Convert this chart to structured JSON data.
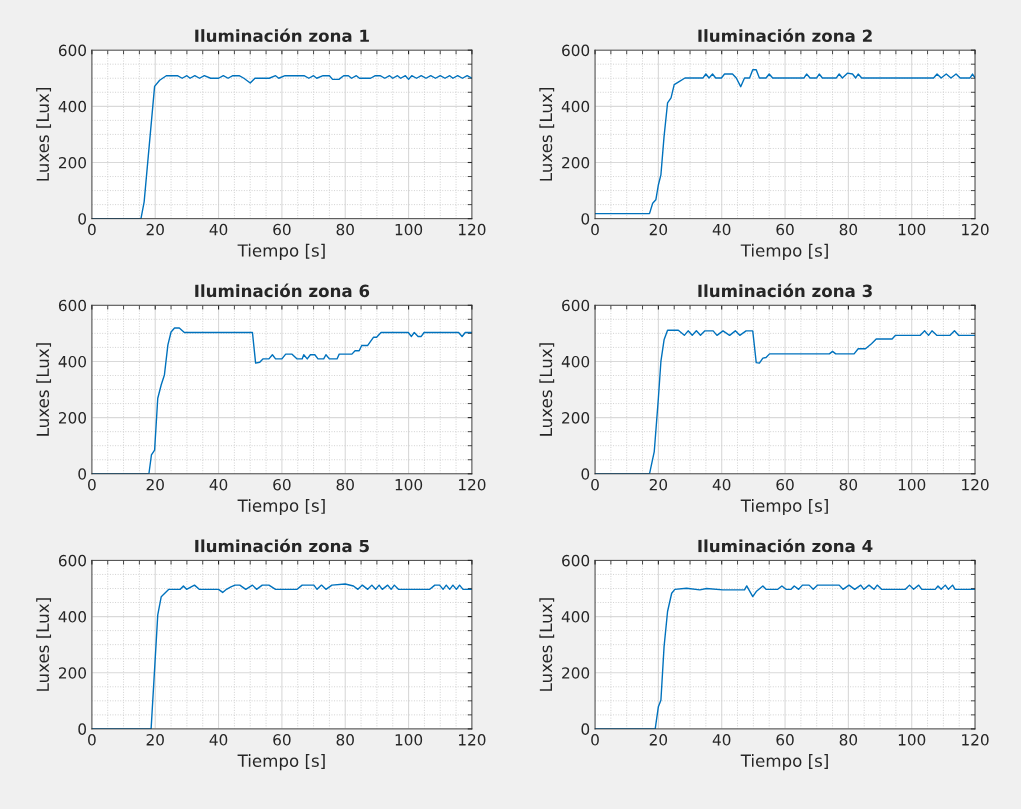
{
  "chart_data": [
    {
      "type": "line",
      "title": "Iluminación zona 1",
      "xlabel": "Tiempo [s]",
      "ylabel": "Luxes [Lux]",
      "xlim": [
        0,
        120
      ],
      "xticks": [
        0,
        20,
        40,
        60,
        80,
        100,
        120
      ],
      "ylim": [
        0,
        600
      ],
      "yticks": [
        0,
        200,
        400,
        600
      ],
      "grid": true,
      "marker": "none",
      "line_style": "solid",
      "series": [
        {
          "color": "#0072bd",
          "x": [
            0,
            15.5,
            16.5,
            19.8,
            21.4,
            23.5,
            27,
            28.5,
            30,
            31,
            32.5,
            34,
            35.5,
            37.5,
            40,
            41.5,
            43,
            44.5,
            46.5,
            48,
            50,
            51.5,
            56,
            58,
            59,
            61,
            67,
            68.5,
            70,
            71,
            73,
            75,
            76,
            78,
            79.5,
            81,
            82,
            83.5,
            84.5,
            88,
            89.5,
            91,
            92.5,
            94,
            95,
            96.5,
            97.5,
            99,
            100,
            101,
            102.5,
            104,
            105.5,
            107,
            108.5,
            110,
            111.5,
            113,
            114,
            115.5,
            117,
            118.5,
            120
          ],
          "values": [
            0,
            0,
            60,
            471,
            493,
            509,
            509,
            500,
            509,
            500,
            509,
            500,
            509,
            500,
            500,
            509,
            500,
            509,
            509,
            500,
            483,
            500,
            500,
            509,
            500,
            509,
            509,
            500,
            509,
            500,
            509,
            509,
            496,
            496,
            509,
            509,
            500,
            509,
            500,
            500,
            509,
            509,
            500,
            509,
            500,
            509,
            500,
            509,
            496,
            509,
            500,
            509,
            500,
            509,
            500,
            509,
            500,
            509,
            500,
            509,
            500,
            509,
            500
          ]
        }
      ]
    },
    {
      "type": "line",
      "title": "Iluminación zona 2",
      "xlabel": "Tiempo [s]",
      "ylabel": "Luxes [Lux]",
      "xlim": [
        0,
        120
      ],
      "xticks": [
        0,
        20,
        40,
        60,
        80,
        100,
        120
      ],
      "ylim": [
        0,
        600
      ],
      "yticks": [
        0,
        200,
        400,
        600
      ],
      "grid": true,
      "marker": "none",
      "line_style": "solid",
      "series": [
        {
          "color": "#0072bd",
          "x": [
            0,
            17.2,
            18.2,
            19.2,
            20,
            20.8,
            21.8,
            22.9,
            24,
            25,
            26.3,
            28.4,
            34.1,
            35,
            36,
            37.1,
            38.1,
            39.9,
            40.9,
            43.4,
            44.6,
            46,
            47.2,
            48.8,
            49.8,
            50.9,
            51.9,
            54,
            55,
            56.1,
            66,
            66.8,
            67.9,
            70,
            70.8,
            71.8,
            76.2,
            77.1,
            78.1,
            79.7,
            81.3,
            82.3,
            83.1,
            84.2,
            106.9,
            108,
            109.3,
            110.9,
            112.4,
            114,
            115.3,
            118.4,
            119.2,
            120
          ],
          "values": [
            18,
            18,
            55,
            67,
            120,
            156,
            293,
            412,
            430,
            477,
            486,
            501,
            501,
            515,
            501,
            515,
            501,
            501,
            515,
            515,
            501,
            470,
            501,
            501,
            530,
            530,
            501,
            501,
            515,
            501,
            501,
            515,
            501,
            501,
            515,
            501,
            501,
            515,
            501,
            518,
            515,
            501,
            515,
            501,
            501,
            515,
            501,
            515,
            501,
            515,
            501,
            501,
            515,
            501
          ]
        }
      ]
    },
    {
      "type": "line",
      "title": "Iluminación zona 6",
      "xlabel": "Tiempo [s]",
      "ylabel": "Luxes [Lux]",
      "xlim": [
        0,
        120
      ],
      "xticks": [
        0,
        20,
        40,
        60,
        80,
        100,
        120
      ],
      "ylim": [
        0,
        600
      ],
      "yticks": [
        0,
        200,
        400,
        600
      ],
      "grid": true,
      "marker": "none",
      "line_style": "solid",
      "series": [
        {
          "color": "#0072bd",
          "x": [
            0,
            18,
            18.8,
            19.8,
            20.8,
            21.9,
            22.9,
            24,
            25,
            26.1,
            27.6,
            29.2,
            50.7,
            51.7,
            53,
            54,
            55.9,
            57,
            58,
            60,
            61.2,
            63.2,
            64.8,
            66.4,
            66.9,
            68,
            69,
            70.4,
            71.4,
            73.2,
            73.9,
            75,
            77.4,
            78.1,
            82.1,
            83.1,
            84.4,
            85.2,
            87.1,
            88.9,
            89.9,
            91.3,
            99.9,
            100.9,
            101.8,
            103,
            104,
            104.9,
            115.8,
            116.9,
            117.9,
            120
          ],
          "values": [
            0,
            0,
            67,
            84,
            269,
            317,
            352,
            459,
            505,
            519,
            519,
            503,
            503,
            394,
            397,
            409,
            409,
            424,
            409,
            409,
            426,
            426,
            409,
            409,
            424,
            409,
            424,
            424,
            409,
            409,
            424,
            409,
            409,
            426,
            426,
            438,
            438,
            457,
            457,
            486,
            486,
            503,
            503,
            489,
            503,
            489,
            489,
            503,
            503,
            489,
            503,
            503
          ]
        }
      ]
    },
    {
      "type": "line",
      "title": "Iluminación zona 3",
      "xlabel": "Tiempo [s]",
      "ylabel": "Luxes [Lux]",
      "xlim": [
        0,
        120
      ],
      "xticks": [
        0,
        20,
        40,
        60,
        80,
        100,
        120
      ],
      "ylim": [
        0,
        600
      ],
      "yticks": [
        0,
        200,
        400,
        600
      ],
      "grid": true,
      "marker": "none",
      "line_style": "solid",
      "series": [
        {
          "color": "#0072bd",
          "x": [
            0,
            17.2,
            18.7,
            20,
            20.8,
            21.8,
            22.9,
            26.3,
            28.2,
            29.4,
            30.7,
            32,
            33.3,
            34.7,
            37.3,
            38.5,
            40.4,
            42.5,
            44.3,
            45.7,
            47.7,
            49.8,
            50.9,
            51.9,
            53,
            54,
            55.1,
            74,
            75,
            76,
            81.8,
            83.1,
            85.4,
            87.3,
            88.8,
            93.8,
            94.9,
            102.7,
            104.1,
            105.3,
            106.4,
            107.9,
            112.1,
            113.5,
            114.8,
            120
          ],
          "values": [
            0,
            0,
            79,
            269,
            400,
            477,
            511,
            511,
            493,
            509,
            493,
            509,
            493,
            509,
            509,
            493,
            509,
            493,
            509,
            493,
            509,
            509,
            396,
            394,
            412,
            414,
            427,
            427,
            436,
            427,
            427,
            445,
            445,
            463,
            480,
            480,
            493,
            493,
            509,
            493,
            509,
            493,
            493,
            509,
            493,
            493
          ]
        }
      ]
    },
    {
      "type": "line",
      "title": "Iluminación zona 5",
      "xlabel": "Tiempo [s]",
      "ylabel": "Luxes [Lux]",
      "xlim": [
        0,
        120
      ],
      "xticks": [
        0,
        20,
        40,
        60,
        80,
        100,
        120
      ],
      "ylim": [
        0,
        600
      ],
      "yticks": [
        0,
        200,
        400,
        600
      ],
      "grid": true,
      "marker": "none",
      "line_style": "solid",
      "series": [
        {
          "color": "#0072bd",
          "x": [
            0,
            18.7,
            20.8,
            21.9,
            24.3,
            27.9,
            28.9,
            29.9,
            32.4,
            33.9,
            40,
            41.3,
            42.5,
            43.9,
            45.2,
            46.7,
            48.6,
            50.7,
            52,
            53.8,
            55.9,
            58,
            64.8,
            66.4,
            70.1,
            71.1,
            72.5,
            73.9,
            75.8,
            80,
            82.6,
            84,
            85.4,
            87.1,
            88.4,
            89.6,
            90.7,
            91.7,
            93.4,
            94.5,
            95.5,
            96.8,
            106.7,
            108.3,
            109.8,
            110.9,
            111.9,
            113,
            114,
            115.1,
            116.1,
            117.2,
            120
          ],
          "values": [
            0,
            0,
            406,
            471,
            497,
            497,
            509,
            497,
            512,
            497,
            497,
            486,
            497,
            506,
            512,
            512,
            497,
            512,
            497,
            512,
            512,
            497,
            497,
            512,
            512,
            497,
            512,
            497,
            512,
            516,
            509,
            497,
            512,
            497,
            512,
            497,
            512,
            497,
            512,
            497,
            512,
            497,
            497,
            512,
            512,
            497,
            512,
            497,
            512,
            497,
            512,
            497,
            497
          ]
        }
      ]
    },
    {
      "type": "line",
      "title": "Iluminación zona 4",
      "xlabel": "Tiempo [s]",
      "ylabel": "Luxes [Lux]",
      "xlim": [
        0,
        120
      ],
      "xticks": [
        0,
        20,
        40,
        60,
        80,
        100,
        120
      ],
      "ylim": [
        0,
        600
      ],
      "yticks": [
        0,
        200,
        400,
        600
      ],
      "grid": true,
      "marker": "none",
      "line_style": "solid",
      "series": [
        {
          "color": "#0072bd",
          "x": [
            0,
            19,
            20,
            20.8,
            21.8,
            22.9,
            24.2,
            25.2,
            28.9,
            33.1,
            35.2,
            40.4,
            47.2,
            47.9,
            49.8,
            50.9,
            53,
            54,
            57.7,
            59,
            60.3,
            61.9,
            62.9,
            64.3,
            65.5,
            67.6,
            68.9,
            70.3,
            71.8,
            75,
            77.1,
            78.3,
            80.2,
            82,
            83.9,
            84.9,
            86.5,
            88.1,
            89.1,
            90.5,
            98,
            99.3,
            100.6,
            102.2,
            103.2,
            107.4,
            108.3,
            109.3,
            110.6,
            111.6,
            112.9,
            113.7,
            120
          ],
          "values": [
            0,
            0,
            79,
            102,
            293,
            418,
            483,
            497,
            501,
            495,
            500,
            495,
            495,
            509,
            471,
            489,
            509,
            497,
            497,
            509,
            497,
            497,
            509,
            497,
            512,
            512,
            497,
            512,
            512,
            512,
            512,
            497,
            512,
            497,
            512,
            497,
            512,
            497,
            512,
            497,
            497,
            512,
            497,
            512,
            497,
            497,
            509,
            497,
            512,
            497,
            512,
            497,
            497
          ]
        }
      ]
    }
  ]
}
